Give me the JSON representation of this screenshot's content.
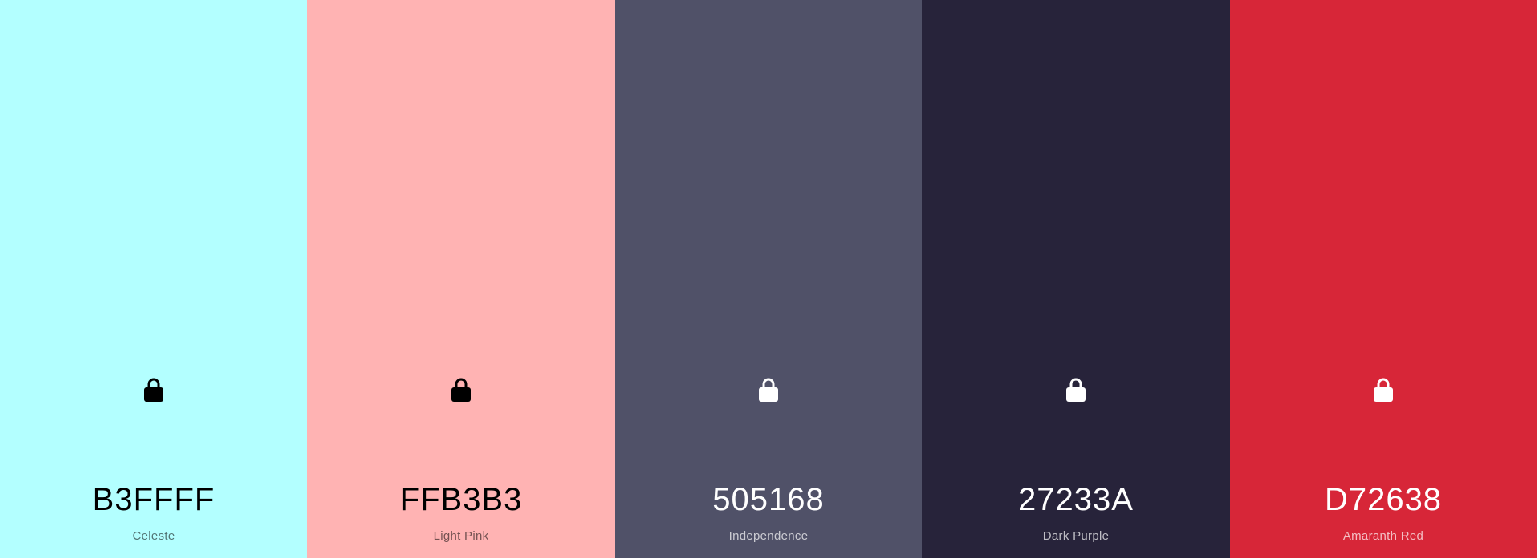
{
  "palette": {
    "swatches": [
      {
        "hex": "B3FFFF",
        "name": "Celeste",
        "color": "#B3FFFF",
        "text_tone": "dark",
        "icon": "lock-icon"
      },
      {
        "hex": "FFB3B3",
        "name": "Light Pink",
        "color": "#FFB3B3",
        "text_tone": "dark",
        "icon": "lock-icon"
      },
      {
        "hex": "505168",
        "name": "Independence",
        "color": "#505168",
        "text_tone": "light",
        "icon": "lock-icon"
      },
      {
        "hex": "27233A",
        "name": "Dark Purple",
        "color": "#27233A",
        "text_tone": "light",
        "icon": "lock-icon"
      },
      {
        "hex": "D72638",
        "name": "Amaranth Red",
        "color": "#D72638",
        "text_tone": "light",
        "icon": "lock-icon"
      }
    ]
  }
}
